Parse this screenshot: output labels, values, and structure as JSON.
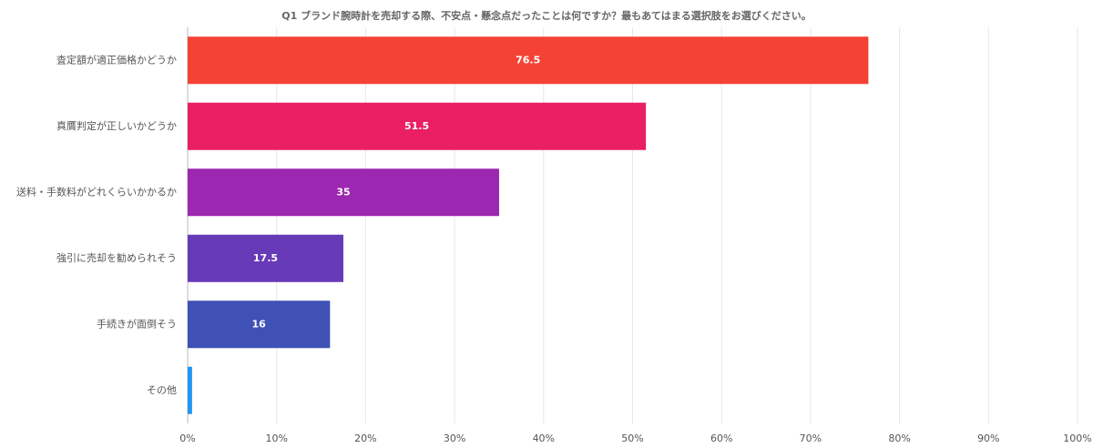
{
  "chart_data": {
    "type": "bar",
    "orientation": "horizontal",
    "title": "Q1 ブランド腕時計を売却する際、不安点・懸念点だったことは何ですか？最もあてはまる選択肢をお選びください。",
    "categories": [
      "査定額が適正価格かどうか",
      "真贋判定が正しいかどうか",
      "送料・手数料がどれくらいかかるか",
      "強引に売却を勧められそう",
      "手続きが面倒そう",
      "その他"
    ],
    "values": [
      76.5,
      51.5,
      35,
      17.5,
      16,
      0.5
    ],
    "value_labels": [
      "76.5",
      "51.5",
      "35",
      "17.5",
      "16",
      null
    ],
    "colors": [
      "#f44336",
      "#e91e63",
      "#9c27b0",
      "#673ab7",
      "#3f51b5",
      "#2196f3"
    ],
    "xlim": [
      0,
      100
    ],
    "xticks": [
      {
        "value": 0,
        "label": "0%"
      },
      {
        "value": 10,
        "label": "10%"
      },
      {
        "value": 20,
        "label": "20%"
      },
      {
        "value": 30,
        "label": "30%"
      },
      {
        "value": 40,
        "label": "40%"
      },
      {
        "value": 50,
        "label": "50%"
      },
      {
        "value": 60,
        "label": "60%"
      },
      {
        "value": 70,
        "label": "70%"
      },
      {
        "value": 80,
        "label": "80%"
      },
      {
        "value": 90,
        "label": "90%"
      },
      {
        "value": 100,
        "label": "100%"
      }
    ],
    "grid": true
  }
}
